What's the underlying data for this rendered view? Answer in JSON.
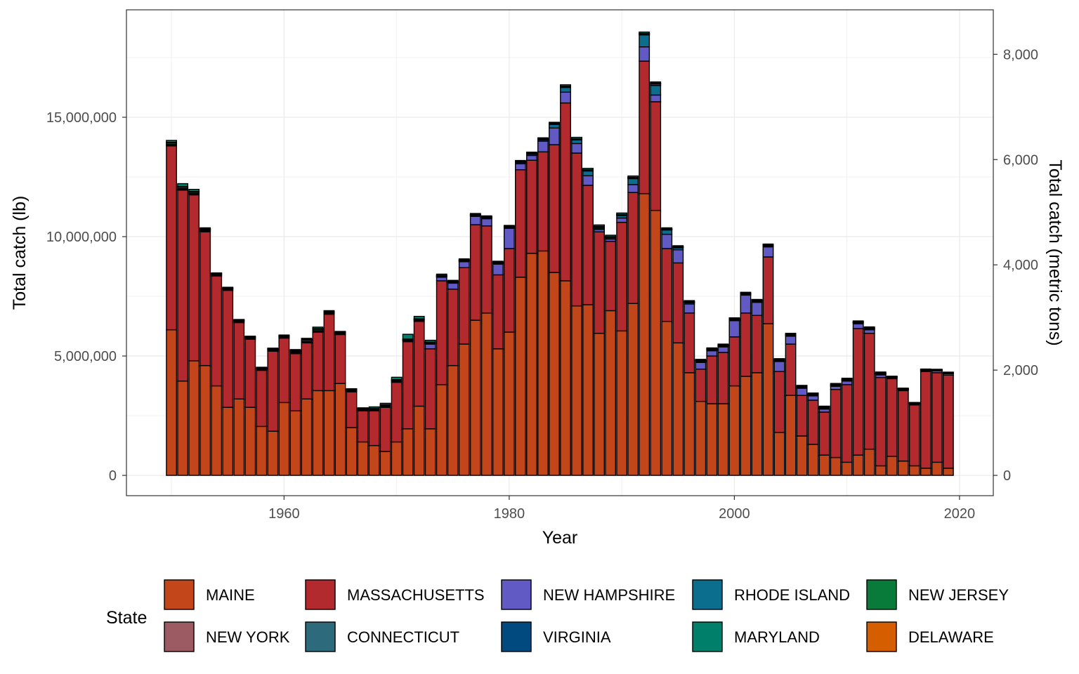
{
  "chart_data": {
    "type": "bar",
    "stacked": true,
    "xlabel": "Year",
    "ylabel": "Total catch (lb)",
    "y2label": "Total catch (metric tons)",
    "legend_title": "State",
    "legend_position": "bottom",
    "grid": true,
    "xlim": [
      1946,
      2023
    ],
    "ylim": [
      -850000,
      19500000
    ],
    "x_ticks": [
      1960,
      1980,
      2000,
      2020
    ],
    "x_tick_labels": [
      "1960",
      "1980",
      "2000",
      "2020"
    ],
    "y_ticks": [
      0,
      5000000,
      10000000,
      15000000
    ],
    "y_tick_labels": [
      "0",
      "5,000,000",
      "10,000,000",
      "15,000,000"
    ],
    "y2_ticks_metric_tons": [
      0,
      2000,
      4000,
      6000,
      8000
    ],
    "y2_tick_labels": [
      "0",
      "2,000",
      "4,000",
      "6,000",
      "8,000"
    ],
    "years": [
      1950,
      1951,
      1952,
      1953,
      1954,
      1955,
      1956,
      1957,
      1958,
      1959,
      1960,
      1961,
      1962,
      1963,
      1964,
      1965,
      1966,
      1967,
      1968,
      1969,
      1970,
      1971,
      1972,
      1973,
      1974,
      1975,
      1976,
      1977,
      1978,
      1979,
      1980,
      1981,
      1982,
      1983,
      1984,
      1985,
      1986,
      1987,
      1988,
      1989,
      1990,
      1991,
      1992,
      1993,
      1994,
      1995,
      1996,
      1997,
      1998,
      1999,
      2000,
      2001,
      2002,
      2003,
      2004,
      2005,
      2006,
      2007,
      2008,
      2009,
      2010,
      2011,
      2012,
      2013,
      2014,
      2015,
      2016,
      2017,
      2018,
      2019
    ],
    "series": [
      {
        "name": "MAINE",
        "color": "#c3461a",
        "values": [
          6100000,
          3950000,
          4800000,
          4600000,
          3750000,
          2850000,
          3200000,
          2850000,
          2050000,
          1850000,
          3050000,
          2700000,
          3200000,
          3550000,
          3550000,
          3850000,
          2000000,
          1400000,
          1250000,
          1000000,
          1400000,
          1950000,
          2900000,
          1950000,
          3800000,
          4600000,
          5500000,
          6500000,
          6800000,
          5300000,
          6000000,
          8300000,
          9300000,
          9400000,
          8500000,
          8150000,
          7100000,
          7150000,
          5950000,
          6900000,
          6050000,
          7200000,
          11800000,
          11100000,
          6450000,
          5550000,
          4300000,
          3100000,
          3000000,
          3000000,
          3750000,
          4150000,
          4300000,
          6350000,
          1800000,
          3350000,
          1650000,
          1300000,
          850000,
          750000,
          550000,
          850000,
          1100000,
          400000,
          800000,
          600000,
          400000,
          300000,
          550000,
          300000
        ]
      },
      {
        "name": "MASSACHUSETTS",
        "color": "#b2292e",
        "values": [
          7700000,
          8000000,
          6950000,
          5600000,
          4600000,
          4900000,
          3200000,
          2850000,
          2350000,
          3350000,
          2700000,
          2400000,
          2350000,
          2450000,
          3200000,
          2050000,
          1500000,
          1300000,
          1450000,
          1850000,
          2500000,
          3650000,
          3550000,
          3350000,
          4350000,
          3200000,
          3200000,
          4000000,
          3650000,
          3100000,
          3500000,
          4500000,
          3900000,
          4150000,
          5350000,
          7450000,
          6400000,
          5000000,
          4250000,
          2900000,
          4550000,
          4650000,
          5550000,
          4550000,
          3050000,
          3350000,
          2500000,
          1350000,
          2000000,
          2150000,
          2050000,
          2650000,
          2400000,
          2800000,
          2550000,
          2150000,
          1700000,
          1850000,
          1800000,
          2850000,
          3250000,
          5300000,
          4850000,
          3700000,
          3250000,
          2950000,
          2550000,
          4050000,
          3750000,
          3900000
        ]
      },
      {
        "name": "NEW HAMPSHIRE",
        "color": "#6159c4",
        "values": [
          30000,
          30000,
          30000,
          30000,
          30000,
          30000,
          30000,
          30000,
          30000,
          30000,
          30000,
          30000,
          30000,
          30000,
          30000,
          30000,
          30000,
          30000,
          30000,
          30000,
          30000,
          30000,
          30000,
          200000,
          150000,
          250000,
          250000,
          350000,
          300000,
          450000,
          850000,
          250000,
          200000,
          450000,
          700000,
          450000,
          400000,
          400000,
          100000,
          100000,
          180000,
          330000,
          600000,
          280000,
          600000,
          550000,
          380000,
          280000,
          220000,
          230000,
          680000,
          750000,
          550000,
          420000,
          420000,
          330000,
          300000,
          180000,
          130000,
          130000,
          150000,
          200000,
          150000,
          110000,
          40000,
          40000,
          40000,
          40000,
          80000,
          60000
        ]
      },
      {
        "name": "RHODE ISLAND",
        "color": "#0b6e8f",
        "values": [
          30000,
          30000,
          30000,
          30000,
          30000,
          30000,
          30000,
          30000,
          30000,
          30000,
          30000,
          30000,
          30000,
          30000,
          30000,
          30000,
          30000,
          30000,
          30000,
          30000,
          30000,
          30000,
          30000,
          30000,
          30000,
          30000,
          30000,
          30000,
          30000,
          30000,
          30000,
          50000,
          50000,
          50000,
          150000,
          200000,
          150000,
          200000,
          50000,
          50000,
          100000,
          250000,
          500000,
          400000,
          180000,
          80000,
          50000,
          40000,
          30000,
          30000,
          30000,
          30000,
          30000,
          30000,
          30000,
          30000,
          30000,
          30000,
          30000,
          30000,
          30000,
          30000,
          30000,
          30000,
          20000,
          20000,
          20000,
          20000,
          20000,
          20000
        ]
      },
      {
        "name": "NEW JERSEY",
        "color": "#087a3a",
        "values": [
          60000,
          60000,
          50000,
          40000,
          20000,
          20000,
          20000,
          20000,
          20000,
          20000,
          20000,
          40000,
          60000,
          60000,
          20000,
          20000,
          20000,
          20000,
          20000,
          20000,
          20000,
          20000,
          20000,
          20000,
          20000,
          20000,
          20000,
          20000,
          20000,
          20000,
          20000,
          20000,
          20000,
          20000,
          20000,
          20000,
          20000,
          20000,
          50000,
          20000,
          20000,
          20000,
          20000,
          20000,
          20000,
          20000,
          20000,
          20000,
          20000,
          20000,
          20000,
          20000,
          20000,
          20000,
          20000,
          20000,
          20000,
          20000,
          20000,
          20000,
          20000,
          20000,
          20000,
          20000,
          10000,
          10000,
          10000,
          10000,
          10000,
          10000
        ]
      },
      {
        "name": "NEW YORK",
        "color": "#9c5a63",
        "values": [
          10000,
          10000,
          10000,
          10000,
          10000,
          10000,
          10000,
          10000,
          10000,
          10000,
          10000,
          10000,
          10000,
          10000,
          10000,
          10000,
          10000,
          10000,
          10000,
          10000,
          10000,
          10000,
          10000,
          10000,
          10000,
          10000,
          10000,
          10000,
          10000,
          10000,
          10000,
          10000,
          10000,
          10000,
          10000,
          10000,
          10000,
          10000,
          10000,
          10000,
          10000,
          10000,
          20000,
          60000,
          10000,
          10000,
          10000,
          10000,
          10000,
          10000,
          10000,
          10000,
          10000,
          10000,
          10000,
          10000,
          10000,
          10000,
          10000,
          10000,
          10000,
          10000,
          10000,
          10000,
          5000,
          5000,
          5000,
          5000,
          5000,
          5000
        ]
      },
      {
        "name": "CONNECTICUT",
        "color": "#2d6b7c",
        "values": [
          10000,
          10000,
          10000,
          10000,
          10000,
          10000,
          10000,
          10000,
          10000,
          10000,
          10000,
          10000,
          10000,
          10000,
          10000,
          10000,
          10000,
          10000,
          10000,
          10000,
          10000,
          10000,
          10000,
          10000,
          10000,
          10000,
          10000,
          10000,
          10000,
          10000,
          10000,
          10000,
          10000,
          10000,
          10000,
          10000,
          10000,
          10000,
          10000,
          10000,
          10000,
          10000,
          10000,
          10000,
          10000,
          10000,
          10000,
          10000,
          10000,
          10000,
          10000,
          10000,
          10000,
          10000,
          10000,
          10000,
          10000,
          10000,
          10000,
          10000,
          10000,
          10000,
          10000,
          10000,
          5000,
          5000,
          5000,
          5000,
          5000,
          5000
        ]
      },
      {
        "name": "VIRGINIA",
        "color": "#004a80",
        "values": [
          10000,
          10000,
          10000,
          10000,
          10000,
          10000,
          10000,
          10000,
          10000,
          10000,
          10000,
          10000,
          10000,
          10000,
          10000,
          10000,
          10000,
          10000,
          10000,
          10000,
          10000,
          10000,
          10000,
          10000,
          10000,
          10000,
          10000,
          10000,
          10000,
          10000,
          10000,
          10000,
          10000,
          10000,
          10000,
          10000,
          10000,
          10000,
          10000,
          10000,
          10000,
          10000,
          10000,
          10000,
          10000,
          10000,
          10000,
          10000,
          10000,
          10000,
          10000,
          10000,
          10000,
          10000,
          10000,
          10000,
          10000,
          10000,
          10000,
          10000,
          10000,
          10000,
          10000,
          10000,
          5000,
          5000,
          5000,
          5000,
          5000,
          5000
        ]
      },
      {
        "name": "MARYLAND",
        "color": "#00806a",
        "values": [
          80000,
          120000,
          90000,
          40000,
          20000,
          20000,
          20000,
          20000,
          20000,
          20000,
          20000,
          40000,
          40000,
          60000,
          40000,
          20000,
          20000,
          20000,
          60000,
          60000,
          100000,
          200000,
          100000,
          80000,
          50000,
          40000,
          40000,
          40000,
          40000,
          40000,
          40000,
          40000,
          40000,
          40000,
          40000,
          60000,
          60000,
          60000,
          60000,
          60000,
          60000,
          60000,
          60000,
          50000,
          40000,
          40000,
          40000,
          40000,
          40000,
          40000,
          40000,
          40000,
          40000,
          40000,
          40000,
          40000,
          40000,
          40000,
          40000,
          40000,
          40000,
          40000,
          40000,
          40000,
          20000,
          20000,
          20000,
          20000,
          20000,
          20000
        ]
      },
      {
        "name": "DELAWARE",
        "color": "#d55e00",
        "values": [
          0,
          0,
          0,
          0,
          0,
          0,
          0,
          0,
          0,
          0,
          0,
          0,
          0,
          0,
          0,
          0,
          0,
          0,
          0,
          0,
          0,
          0,
          0,
          0,
          0,
          0,
          0,
          0,
          0,
          0,
          0,
          0,
          0,
          0,
          0,
          0,
          0,
          0,
          0,
          0,
          0,
          0,
          0,
          0,
          0,
          0,
          0,
          0,
          0,
          0,
          0,
          0,
          0,
          0,
          0,
          0,
          0,
          0,
          0,
          0,
          0,
          0,
          0,
          0,
          0,
          0,
          0,
          0,
          0,
          0
        ]
      }
    ]
  }
}
